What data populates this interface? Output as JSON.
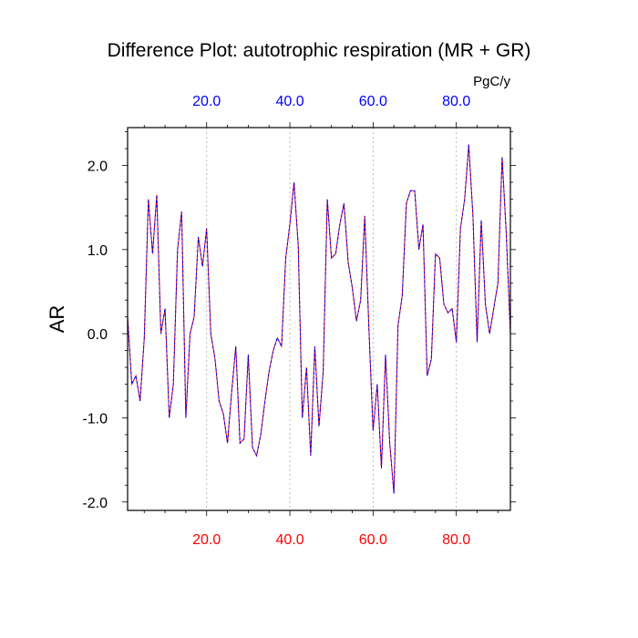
{
  "chart_data": {
    "type": "line",
    "title": "Difference Plot: autotrophic respiration (MR + GR)",
    "units": "PgC/y",
    "ylabel": "AR",
    "xlabel": "",
    "xlim": [
      1,
      93
    ],
    "ylim": [
      -2.1,
      2.45
    ],
    "x_ticks": [
      20,
      40,
      60,
      80
    ],
    "x_tick_labels": [
      "20.0",
      "40.0",
      "60.0",
      "80.0"
    ],
    "y_ticks": [
      -2,
      -1,
      0,
      1,
      2
    ],
    "y_tick_labels": [
      "-2.0",
      "-1.0",
      "0.0",
      "1.0",
      "2.0"
    ],
    "x_grid": true,
    "colors": {
      "bottom_axis": "#ff0000",
      "top_axis": "#0000ff",
      "series_a": "#ff0000",
      "series_b": "#0000ff"
    },
    "series": [
      {
        "name": "difference",
        "x_start": 1,
        "values": [
          0.2,
          -0.6,
          -0.5,
          -0.8,
          -0.05,
          1.6,
          0.95,
          1.65,
          0.0,
          0.3,
          -1.0,
          -0.6,
          1.0,
          1.45,
          -1.0,
          0.0,
          0.2,
          1.15,
          0.8,
          1.25,
          0.0,
          -0.3,
          -0.8,
          -0.95,
          -1.3,
          -0.7,
          -0.15,
          -1.3,
          -1.25,
          -0.25,
          -1.35,
          -1.45,
          -1.2,
          -0.8,
          -0.45,
          -0.2,
          -0.05,
          -0.15,
          0.9,
          1.3,
          1.8,
          1.05,
          -1.0,
          -0.4,
          -1.45,
          -0.15,
          -1.1,
          -0.45,
          1.6,
          0.9,
          0.95,
          1.3,
          1.55,
          0.85,
          0.55,
          0.15,
          0.4,
          1.4,
          0.05,
          -1.15,
          -0.6,
          -1.6,
          -0.25,
          -1.3,
          -1.9,
          0.1,
          0.45,
          1.55,
          1.7,
          1.7,
          1.0,
          1.3,
          -0.5,
          -0.3,
          0.95,
          0.9,
          0.35,
          0.25,
          0.3,
          -0.1,
          1.25,
          1.6,
          2.25,
          1.4,
          -0.1,
          1.35,
          0.35,
          0.0,
          0.3,
          0.6,
          2.1,
          1.2,
          0.0
        ]
      }
    ]
  }
}
